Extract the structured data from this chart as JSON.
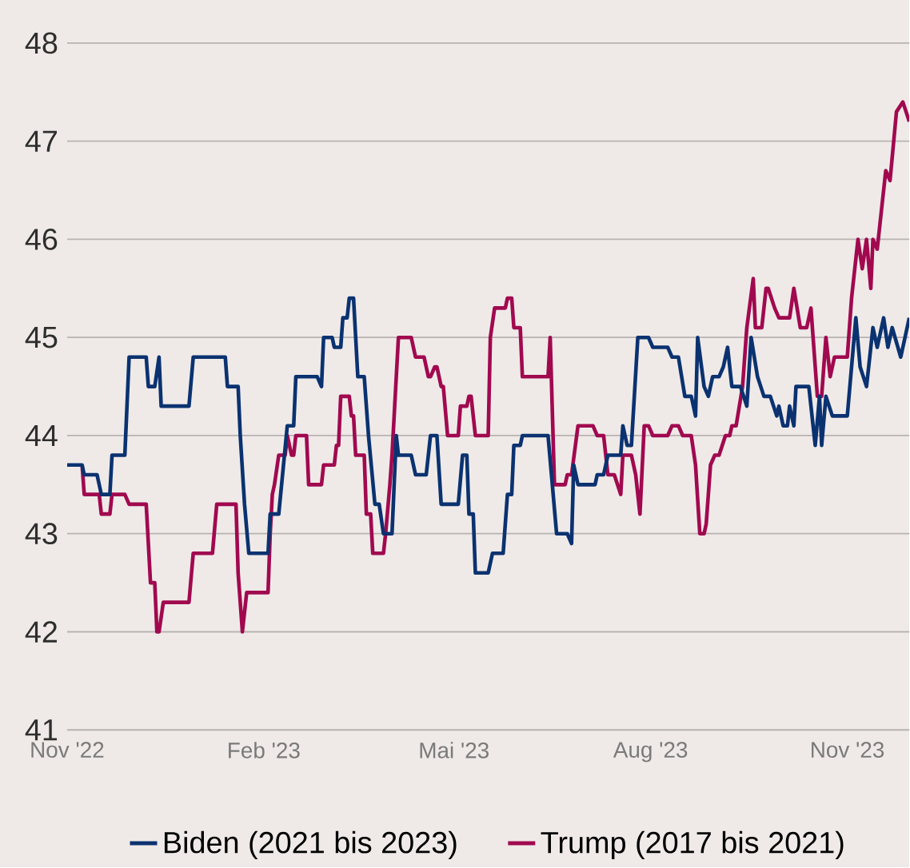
{
  "chart_data": {
    "type": "line",
    "xlim": [
      "2022-11-01",
      "2023-11-30"
    ],
    "ylim": [
      41,
      48
    ],
    "yticks": [
      41,
      42,
      43,
      44,
      45,
      46,
      47,
      48
    ],
    "xticks": [
      {
        "value": "2022-11-01",
        "label": "Nov '22"
      },
      {
        "value": "2023-02-01",
        "label": "Feb '23"
      },
      {
        "value": "2023-05-01",
        "label": "Mai '23"
      },
      {
        "value": "2023-08-01",
        "label": "Aug '23"
      },
      {
        "value": "2023-11-01",
        "label": "Nov '23"
      }
    ],
    "grid": "y",
    "legend": "bottom",
    "series": [
      {
        "name": "Biden (2021 bis 2023)",
        "color": "#0b3270",
        "x": [
          "2022-11-01",
          "2022-11-08",
          "2022-11-09",
          "2022-11-15",
          "2022-11-17",
          "2022-11-21",
          "2022-11-22",
          "2022-11-28",
          "2022-11-30",
          "2022-12-08",
          "2022-12-09",
          "2022-12-12",
          "2022-12-14",
          "2022-12-15",
          "2022-12-28",
          "2022-12-30",
          "2023-01-14",
          "2023-01-15",
          "2023-01-20",
          "2023-01-21",
          "2023-01-23",
          "2023-01-25",
          "2023-02-03",
          "2023-02-04",
          "2023-02-08",
          "2023-02-12",
          "2023-02-15",
          "2023-02-16",
          "2023-02-26",
          "2023-02-28",
          "2023-03-01",
          "2023-03-05",
          "2023-03-06",
          "2023-03-09",
          "2023-03-10",
          "2023-03-12",
          "2023-03-13",
          "2023-03-15",
          "2023-03-17",
          "2023-03-20",
          "2023-03-22",
          "2023-03-25",
          "2023-03-27",
          "2023-03-29",
          "2023-04-02",
          "2023-04-04",
          "2023-04-05",
          "2023-04-11",
          "2023-04-13",
          "2023-04-18",
          "2023-04-20",
          "2023-04-23",
          "2023-04-25",
          "2023-05-03",
          "2023-05-05",
          "2023-05-07",
          "2023-05-08",
          "2023-05-10",
          "2023-05-11",
          "2023-05-17",
          "2023-05-19",
          "2023-05-24",
          "2023-05-26",
          "2023-05-28",
          "2023-05-29",
          "2023-06-01",
          "2023-06-02",
          "2023-06-14",
          "2023-06-18",
          "2023-06-23",
          "2023-06-25",
          "2023-06-26",
          "2023-06-28",
          "2023-07-06",
          "2023-07-07",
          "2023-07-10",
          "2023-07-12",
          "2023-07-18",
          "2023-07-19",
          "2023-07-21",
          "2023-07-23",
          "2023-07-26",
          "2023-07-31",
          "2023-08-02",
          "2023-08-09",
          "2023-08-11",
          "2023-08-14",
          "2023-08-17",
          "2023-08-20",
          "2023-08-22",
          "2023-08-23",
          "2023-08-26",
          "2023-08-28",
          "2023-08-30",
          "2023-09-02",
          "2023-09-04",
          "2023-09-06",
          "2023-09-08",
          "2023-09-12",
          "2023-09-15",
          "2023-09-17",
          "2023-09-20",
          "2023-09-23",
          "2023-09-26",
          "2023-09-29",
          "2023-09-30",
          "2023-10-02",
          "2023-10-04",
          "2023-10-05",
          "2023-10-07",
          "2023-10-08",
          "2023-10-14",
          "2023-10-17",
          "2023-10-19",
          "2023-10-20",
          "2023-10-22",
          "2023-10-25",
          "2023-11-01",
          "2023-11-05",
          "2023-11-07",
          "2023-11-10",
          "2023-11-13",
          "2023-11-15",
          "2023-11-18",
          "2023-11-20",
          "2023-11-22",
          "2023-11-26",
          "2023-11-30"
        ],
        "values": [
          43.7,
          43.7,
          43.6,
          43.6,
          43.4,
          43.4,
          43.8,
          43.8,
          44.8,
          44.8,
          44.5,
          44.5,
          44.8,
          44.3,
          44.3,
          44.8,
          44.8,
          44.5,
          44.5,
          44.0,
          43.3,
          42.8,
          42.8,
          43.2,
          43.2,
          44.1,
          44.1,
          44.6,
          44.6,
          44.5,
          45.0,
          45.0,
          44.9,
          44.9,
          45.2,
          45.2,
          45.4,
          45.4,
          44.6,
          44.6,
          44.0,
          43.3,
          43.3,
          43.0,
          43.0,
          44.0,
          43.8,
          43.8,
          43.6,
          43.6,
          44.0,
          44.0,
          43.3,
          43.3,
          43.8,
          43.8,
          43.2,
          43.2,
          42.6,
          42.6,
          42.8,
          42.8,
          43.4,
          43.4,
          43.9,
          43.9,
          44.0,
          44.0,
          43.0,
          43.0,
          42.9,
          43.7,
          43.5,
          43.5,
          43.6,
          43.6,
          43.8,
          43.8,
          44.1,
          43.9,
          43.9,
          45.0,
          45.0,
          44.9,
          44.9,
          44.8,
          44.8,
          44.4,
          44.4,
          44.2,
          45.0,
          44.5,
          44.4,
          44.6,
          44.6,
          44.7,
          44.9,
          44.5,
          44.5,
          44.3,
          45.0,
          44.6,
          44.4,
          44.4,
          44.2,
          44.3,
          44.1,
          44.1,
          44.3,
          44.1,
          44.5,
          44.5,
          43.9,
          44.4,
          43.9,
          44.4,
          44.2,
          44.2,
          45.2,
          44.7,
          44.5,
          45.1,
          44.9,
          45.2,
          44.9,
          45.1,
          44.8,
          45.2
        ]
      },
      {
        "name": "Trump (2017 bis 2021)",
        "color": "#a1094f",
        "x": [
          "2022-11-08",
          "2022-11-09",
          "2022-11-16",
          "2022-11-17",
          "2022-11-21",
          "2022-11-22",
          "2022-11-28",
          "2022-11-30",
          "2022-12-08",
          "2022-12-10",
          "2022-12-12",
          "2022-12-13",
          "2022-12-14",
          "2022-12-16",
          "2022-12-28",
          "2022-12-30",
          "2023-01-08",
          "2023-01-10",
          "2023-01-19",
          "2023-01-20",
          "2023-01-22",
          "2023-01-24",
          "2023-02-03",
          "2023-02-04",
          "2023-02-05",
          "2023-02-06",
          "2023-02-08",
          "2023-02-11",
          "2023-02-12",
          "2023-02-14",
          "2023-02-15",
          "2023-02-16",
          "2023-02-21",
          "2023-02-22",
          "2023-02-28",
          "2023-03-01",
          "2023-03-06",
          "2023-03-07",
          "2023-03-08",
          "2023-03-09",
          "2023-03-13",
          "2023-03-14",
          "2023-03-15",
          "2023-03-16",
          "2023-03-20",
          "2023-03-21",
          "2023-03-23",
          "2023-03-24",
          "2023-03-29",
          "2023-03-30",
          "2023-04-01",
          "2023-04-02",
          "2023-04-05",
          "2023-04-11",
          "2023-04-13",
          "2023-04-17",
          "2023-04-19",
          "2023-04-20",
          "2023-04-22",
          "2023-04-23",
          "2023-04-25",
          "2023-04-26",
          "2023-04-28",
          "2023-05-03",
          "2023-05-04",
          "2023-05-07",
          "2023-05-08",
          "2023-05-09",
          "2023-05-11",
          "2023-05-17",
          "2023-05-18",
          "2023-05-20",
          "2023-05-25",
          "2023-05-26",
          "2023-05-28",
          "2023-05-29",
          "2023-06-01",
          "2023-06-02",
          "2023-06-14",
          "2023-06-15",
          "2023-06-17",
          "2023-06-22",
          "2023-06-23",
          "2023-06-25",
          "2023-06-28",
          "2023-07-05",
          "2023-07-07",
          "2023-07-10",
          "2023-07-12",
          "2023-07-15",
          "2023-07-18",
          "2023-07-19",
          "2023-07-23",
          "2023-07-25",
          "2023-07-27",
          "2023-07-29",
          "2023-07-31",
          "2023-08-02",
          "2023-08-09",
          "2023-08-11",
          "2023-08-14",
          "2023-08-16",
          "2023-08-20",
          "2023-08-22",
          "2023-08-24",
          "2023-08-26",
          "2023-08-27",
          "2023-08-29",
          "2023-08-31",
          "2023-09-02",
          "2023-09-05",
          "2023-09-07",
          "2023-09-08",
          "2023-09-10",
          "2023-09-13",
          "2023-09-15",
          "2023-09-18",
          "2023-09-19",
          "2023-09-22",
          "2023-09-24",
          "2023-09-25",
          "2023-09-28",
          "2023-09-30",
          "2023-10-05",
          "2023-10-07",
          "2023-10-10",
          "2023-10-13",
          "2023-10-15",
          "2023-10-18",
          "2023-10-20",
          "2023-10-22",
          "2023-10-24",
          "2023-10-26",
          "2023-11-01",
          "2023-11-03",
          "2023-11-05",
          "2023-11-06",
          "2023-11-08",
          "2023-11-10",
          "2023-11-12",
          "2023-11-13",
          "2023-11-15",
          "2023-11-19",
          "2023-11-21",
          "2023-11-24",
          "2023-11-27",
          "2023-11-30"
        ],
        "values": [
          43.7,
          43.4,
          43.4,
          43.2,
          43.2,
          43.4,
          43.4,
          43.3,
          43.3,
          42.5,
          42.5,
          42.0,
          42.0,
          42.3,
          42.3,
          42.8,
          42.8,
          43.3,
          43.3,
          42.6,
          42.0,
          42.4,
          42.4,
          43.0,
          43.4,
          43.5,
          43.8,
          43.8,
          44.0,
          43.8,
          43.8,
          44.0,
          44.0,
          43.5,
          43.5,
          43.7,
          43.7,
          43.9,
          43.9,
          44.4,
          44.4,
          44.2,
          44.2,
          43.8,
          43.8,
          43.2,
          43.2,
          42.8,
          42.8,
          43.0,
          43.5,
          43.8,
          45.0,
          45.0,
          44.8,
          44.8,
          44.6,
          44.6,
          44.7,
          44.7,
          44.5,
          44.5,
          44.0,
          44.0,
          44.3,
          44.3,
          44.4,
          44.4,
          44.0,
          44.0,
          45.0,
          45.3,
          45.3,
          45.4,
          45.4,
          45.1,
          45.1,
          44.6,
          44.6,
          45.0,
          43.5,
          43.5,
          43.6,
          43.6,
          44.1,
          44.1,
          44.0,
          44.0,
          43.6,
          43.6,
          43.4,
          43.8,
          43.8,
          43.6,
          43.2,
          44.1,
          44.1,
          44.0,
          44.0,
          44.1,
          44.1,
          44.0,
          44.0,
          43.7,
          43.0,
          43.0,
          43.1,
          43.7,
          43.8,
          43.8,
          44.0,
          44.0,
          44.1,
          44.1,
          44.5,
          45.1,
          45.6,
          45.1,
          45.1,
          45.5,
          45.5,
          45.3,
          45.2,
          45.2,
          45.5,
          45.1,
          45.1,
          45.3,
          44.4,
          44.4,
          45.0,
          44.6,
          44.8,
          44.8,
          45.4,
          45.8,
          46.0,
          45.7,
          46.0,
          45.5,
          46.0,
          45.9,
          46.7,
          46.6,
          47.3,
          47.4,
          47.2
        ]
      }
    ]
  }
}
